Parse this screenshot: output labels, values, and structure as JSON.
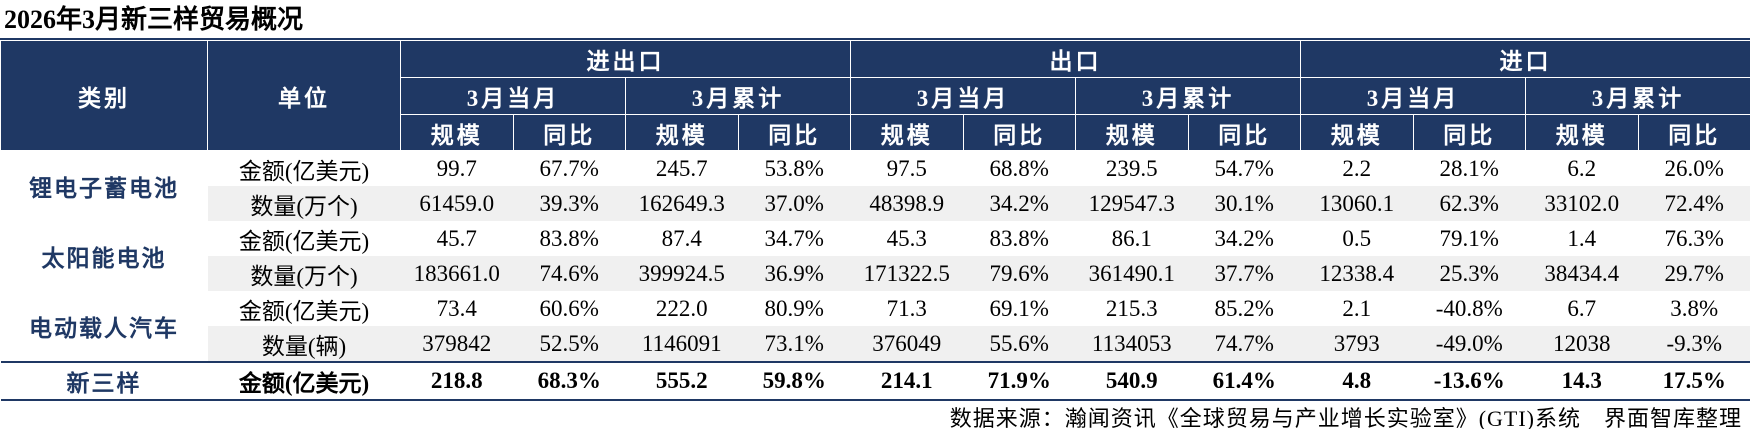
{
  "title": "2026年3月新三样贸易概况",
  "header": {
    "category": "类别",
    "unit": "单位",
    "groups": [
      "进出口",
      "出口",
      "进口"
    ],
    "periods": [
      "3月当月",
      "3月累计"
    ],
    "metrics": [
      "规模",
      "同比"
    ]
  },
  "rows": [
    {
      "category": "锂电子蓄电池",
      "items": [
        {
          "unit": "金额(亿美元)",
          "values": [
            "99.7",
            "67.7%",
            "245.7",
            "53.8%",
            "97.5",
            "68.8%",
            "239.5",
            "54.7%",
            "2.2",
            "28.1%",
            "6.2",
            "26.0%"
          ]
        },
        {
          "unit": "数量(万个)",
          "values": [
            "61459.0",
            "39.3%",
            "162649.3",
            "37.0%",
            "48398.9",
            "34.2%",
            "129547.3",
            "30.1%",
            "13060.1",
            "62.3%",
            "33102.0",
            "72.4%"
          ]
        }
      ]
    },
    {
      "category": "太阳能电池",
      "items": [
        {
          "unit": "金额(亿美元)",
          "values": [
            "45.7",
            "83.8%",
            "87.4",
            "34.7%",
            "45.3",
            "83.8%",
            "86.1",
            "34.2%",
            "0.5",
            "79.1%",
            "1.4",
            "76.3%"
          ]
        },
        {
          "unit": "数量(万个)",
          "values": [
            "183661.0",
            "74.6%",
            "399924.5",
            "36.9%",
            "171322.5",
            "79.6%",
            "361490.1",
            "37.7%",
            "12338.4",
            "25.3%",
            "38434.4",
            "29.7%"
          ]
        }
      ]
    },
    {
      "category": "电动载人汽车",
      "items": [
        {
          "unit": "金额(亿美元)",
          "values": [
            "73.4",
            "60.6%",
            "222.0",
            "80.9%",
            "71.3",
            "69.1%",
            "215.3",
            "85.2%",
            "2.1",
            "-40.8%",
            "6.7",
            "3.8%"
          ]
        },
        {
          "unit": "数量(辆)",
          "values": [
            "379842",
            "52.5%",
            "1146091",
            "73.1%",
            "376049",
            "55.6%",
            "1134053",
            "74.7%",
            "3793",
            "-49.0%",
            "12038",
            "-9.3%"
          ]
        }
      ]
    }
  ],
  "total": {
    "category": "新三样",
    "unit": "金额(亿美元)",
    "values": [
      "218.8",
      "68.3%",
      "555.2",
      "59.8%",
      "214.1",
      "71.9%",
      "540.9",
      "61.4%",
      "4.8",
      "-13.6%",
      "14.3",
      "17.5%"
    ]
  },
  "source": "数据来源：瀚闻资讯《全球贸易与产业增长实验室》(GTI)系统　界面智库整理"
}
